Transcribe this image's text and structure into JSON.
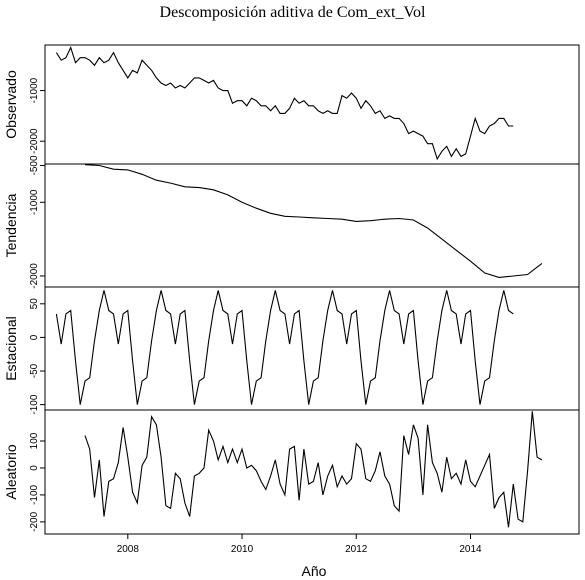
{
  "chart_data": {
    "type": "line",
    "title": "Descomposición aditiva de Com_ext_Vol",
    "xlabel": "Año",
    "x_range": [
      2006.55,
      2015.9
    ],
    "x_ticks": [
      2008,
      2010,
      2012,
      2014
    ],
    "x_tick_labels": [
      "2008",
      "2010",
      "2012",
      "2014"
    ],
    "panels": [
      {
        "name": "observado",
        "ylabel": "Observado",
        "ylim": [
          -2450,
          -100
        ],
        "y_ticks": [
          -1000,
          -2000
        ],
        "y_tick_labels": [
          "-1000",
          "-2000"
        ],
        "start": 2006.75,
        "step": 0.08333,
        "values": [
          -250,
          -400,
          -350,
          -150,
          -450,
          -350,
          -350,
          -400,
          -500,
          -350,
          -450,
          -400,
          -250,
          -450,
          -600,
          -750,
          -600,
          -650,
          -400,
          -500,
          -600,
          -750,
          -850,
          -900,
          -850,
          -950,
          -900,
          -950,
          -850,
          -750,
          -750,
          -800,
          -850,
          -800,
          -950,
          -1000,
          -1000,
          -1250,
          -1200,
          -1200,
          -1300,
          -1150,
          -1200,
          -1300,
          -1300,
          -1400,
          -1300,
          -1450,
          -1450,
          -1350,
          -1150,
          -1250,
          -1200,
          -1300,
          -1300,
          -1400,
          -1450,
          -1400,
          -1450,
          -1450,
          -1100,
          -1150,
          -1050,
          -1150,
          -1350,
          -1200,
          -1300,
          -1450,
          -1400,
          -1550,
          -1500,
          -1550,
          -1550,
          -1650,
          -1850,
          -1800,
          -1850,
          -1900,
          -2050,
          -2050,
          -2350,
          -2200,
          -2100,
          -2300,
          -2150,
          -2300,
          -2250,
          -1900,
          -1550,
          -1800,
          -1850,
          -1700,
          -1650,
          -1550,
          -1550,
          -1700,
          -1700
        ]
      },
      {
        "name": "tendencia",
        "ylabel": "Tendencia",
        "ylim": [
          -2150,
          -480
        ],
        "y_ticks": [
          -500,
          -1000,
          -2000
        ],
        "y_tick_labels": [
          "-500",
          "-1000",
          "-2000"
        ],
        "x": [
          2007.25,
          2007.5,
          2007.75,
          2008.0,
          2008.25,
          2008.5,
          2008.75,
          2009.0,
          2009.25,
          2009.5,
          2009.75,
          2010.0,
          2010.25,
          2010.5,
          2010.75,
          2011.0,
          2011.25,
          2011.5,
          2011.75,
          2012.0,
          2012.25,
          2012.5,
          2012.75,
          2013.0,
          2013.25,
          2013.5,
          2013.75,
          2014.0,
          2014.25,
          2014.5,
          2014.75,
          2015.0,
          2015.25
        ],
        "values": [
          -490,
          -500,
          -550,
          -560,
          -620,
          -700,
          -740,
          -790,
          -800,
          -830,
          -900,
          -1000,
          -1080,
          -1150,
          -1190,
          -1200,
          -1210,
          -1220,
          -1230,
          -1260,
          -1250,
          -1230,
          -1220,
          -1240,
          -1350,
          -1500,
          -1650,
          -1800,
          -1960,
          -2020,
          -2000,
          -1980,
          -1830
        ]
      },
      {
        "name": "estacional",
        "ylabel": "Estacional",
        "ylim": [
          -108,
          75
        ],
        "y_ticks": [
          50,
          0,
          -50,
          -100
        ],
        "y_tick_labels": [
          "50",
          "0",
          "-50",
          "-100"
        ],
        "start": 2006.75,
        "step": 0.08333,
        "pattern": [
          35,
          -10,
          35,
          40,
          -35,
          -100,
          -65,
          -60,
          -5,
          40,
          70,
          40
        ],
        "n": 97
      },
      {
        "name": "aleatorio",
        "ylabel": "Aleatorio",
        "ylim": [
          -245,
          215
        ],
        "y_ticks": [
          100,
          0,
          -100,
          -200
        ],
        "y_tick_labels": [
          "100",
          "0",
          "-100",
          "-200"
        ],
        "start": 2007.25,
        "step": 0.08333,
        "values": [
          120,
          70,
          -110,
          30,
          -180,
          -50,
          -40,
          20,
          150,
          40,
          -90,
          -130,
          10,
          40,
          190,
          160,
          40,
          -140,
          -150,
          -20,
          -40,
          -130,
          -180,
          -30,
          -20,
          0,
          140,
          100,
          30,
          80,
          20,
          70,
          20,
          70,
          0,
          10,
          -10,
          -50,
          -80,
          -30,
          30,
          -60,
          -100,
          70,
          80,
          -120,
          70,
          -60,
          -50,
          20,
          -100,
          -30,
          10,
          -70,
          -30,
          -60,
          -40,
          90,
          70,
          -40,
          -50,
          -10,
          60,
          -30,
          -60,
          -140,
          -160,
          120,
          50,
          160,
          110,
          -100,
          160,
          20,
          -20,
          -90,
          40,
          -40,
          -20,
          -60,
          30,
          -50,
          -70,
          -30,
          10,
          50,
          -150,
          -110,
          -90,
          -220,
          -60,
          -190,
          -200,
          -10,
          210,
          40,
          30
        ]
      }
    ]
  }
}
